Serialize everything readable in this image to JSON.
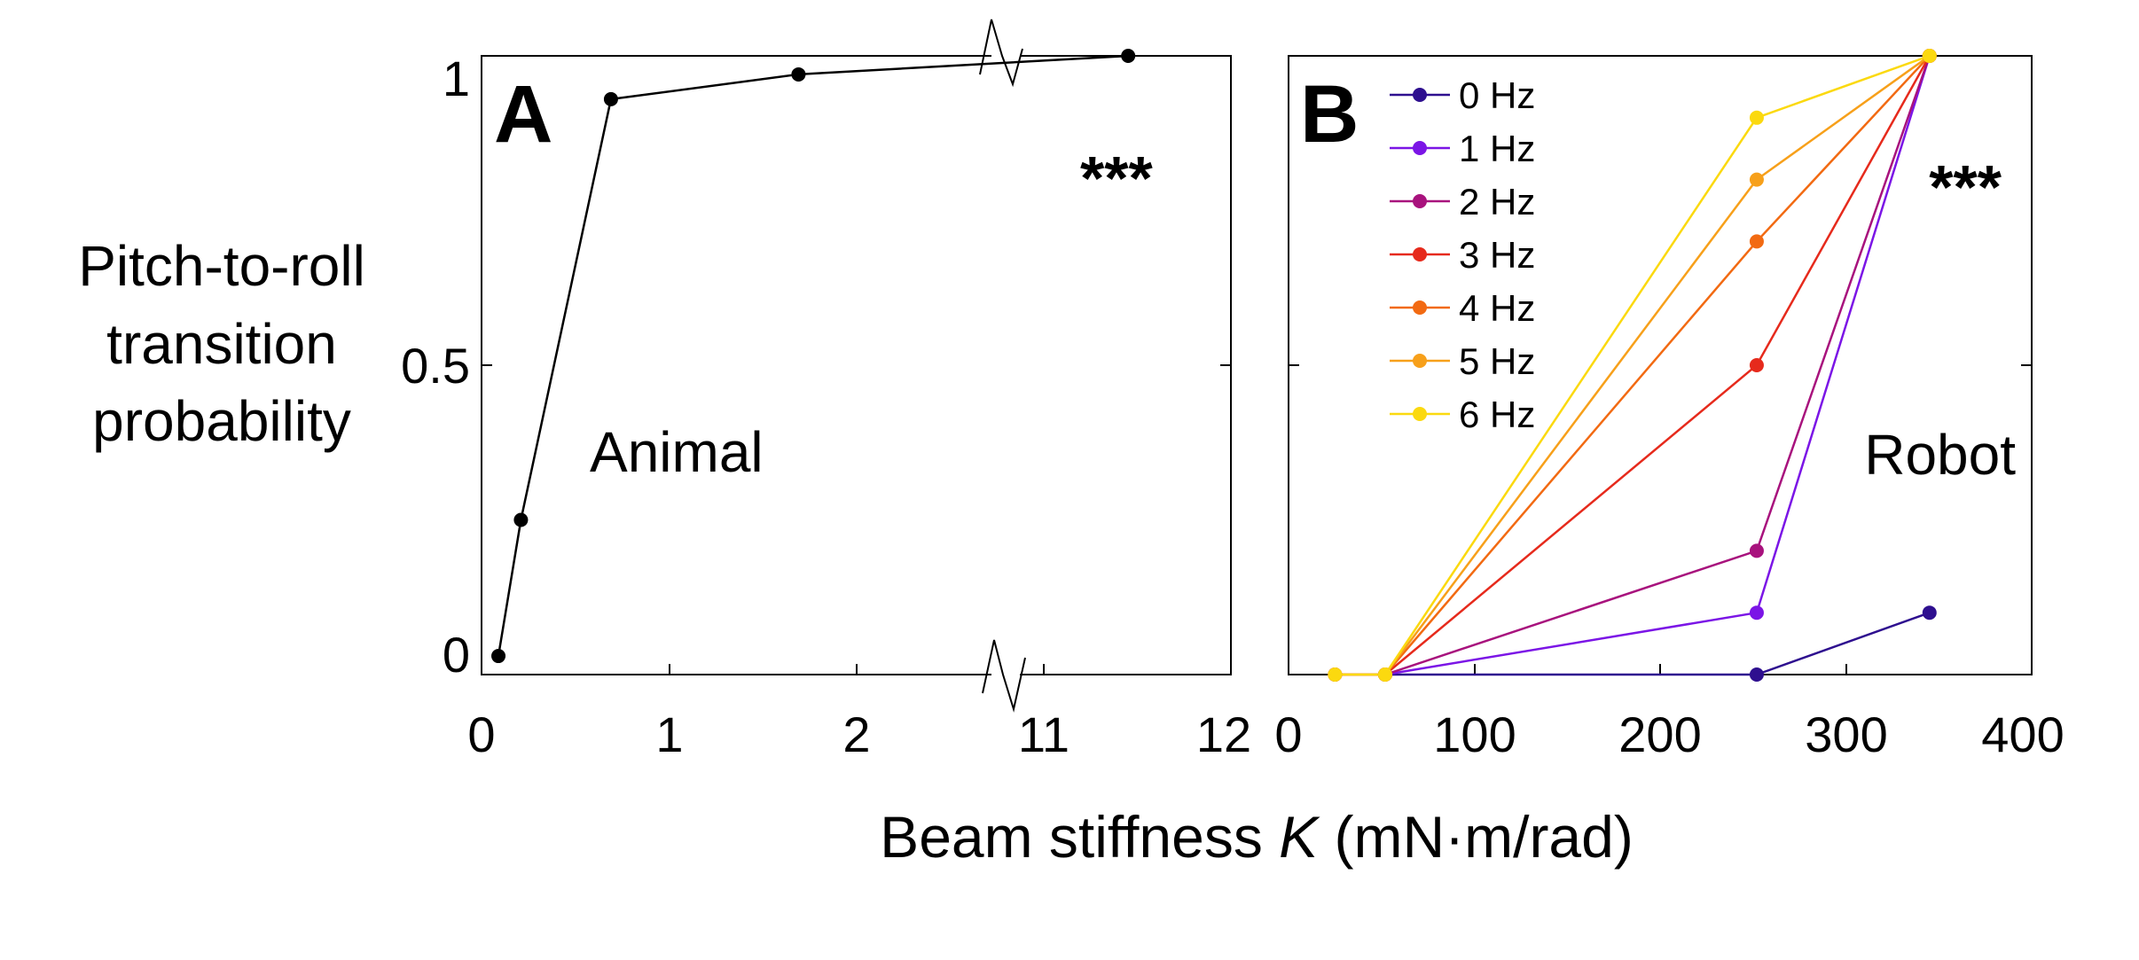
{
  "ylabel_lines": [
    "Pitch-to-roll",
    "transition",
    "probability"
  ],
  "xlabel_prefix": "Beam stiffness ",
  "xlabel_symbol": "K",
  "xlabel_suffix": " (mN·m/rad)",
  "y_ticks": [
    "0",
    "0.5",
    "1"
  ],
  "chart_data": [
    {
      "panel_label": "A",
      "type": "line",
      "annotation": "Animal",
      "significance": "***",
      "x_tick_labels": [
        "0",
        "1",
        "2",
        "11",
        "12"
      ],
      "axis_break": "between 2 and 11",
      "ylim": [
        0,
        1
      ],
      "series": [
        {
          "name": "Animal",
          "color": "#000000",
          "x": [
            0.09,
            0.21,
            0.69,
            1.69,
            11.45
          ],
          "y": [
            0.03,
            0.25,
            0.93,
            0.97,
            1.0
          ]
        }
      ]
    },
    {
      "panel_label": "B",
      "type": "line",
      "annotation": "Robot",
      "significance": "***",
      "xlim": [
        0,
        400
      ],
      "x_tick_labels": [
        "0",
        "100",
        "200",
        "300",
        "400"
      ],
      "ylim": [
        0,
        1
      ],
      "legend_position": "top-left",
      "series": [
        {
          "name": "0 Hz",
          "color": "#2e0f8f",
          "x": [
            25,
            52,
            252,
            345
          ],
          "y": [
            0,
            0,
            0,
            0.1
          ]
        },
        {
          "name": "1 Hz",
          "color": "#7b15e6",
          "x": [
            25,
            52,
            252,
            345
          ],
          "y": [
            0,
            0,
            0.1,
            1.0
          ]
        },
        {
          "name": "2 Hz",
          "color": "#a8127d",
          "x": [
            25,
            52,
            252,
            345
          ],
          "y": [
            0,
            0,
            0.2,
            1.0
          ]
        },
        {
          "name": "3 Hz",
          "color": "#e62a1c",
          "x": [
            25,
            52,
            252,
            345
          ],
          "y": [
            0,
            0,
            0.5,
            1.0
          ]
        },
        {
          "name": "4 Hz",
          "color": "#f26a12",
          "x": [
            25,
            52,
            252,
            345
          ],
          "y": [
            0,
            0,
            0.7,
            1.0
          ]
        },
        {
          "name": "5 Hz",
          "color": "#f7a01a",
          "x": [
            25,
            52,
            252,
            345
          ],
          "y": [
            0,
            0,
            0.8,
            1.0
          ]
        },
        {
          "name": "6 Hz",
          "color": "#fbd90f",
          "x": [
            25,
            52,
            252,
            345
          ],
          "y": [
            0,
            0,
            0.9,
            1.0
          ]
        }
      ]
    }
  ]
}
